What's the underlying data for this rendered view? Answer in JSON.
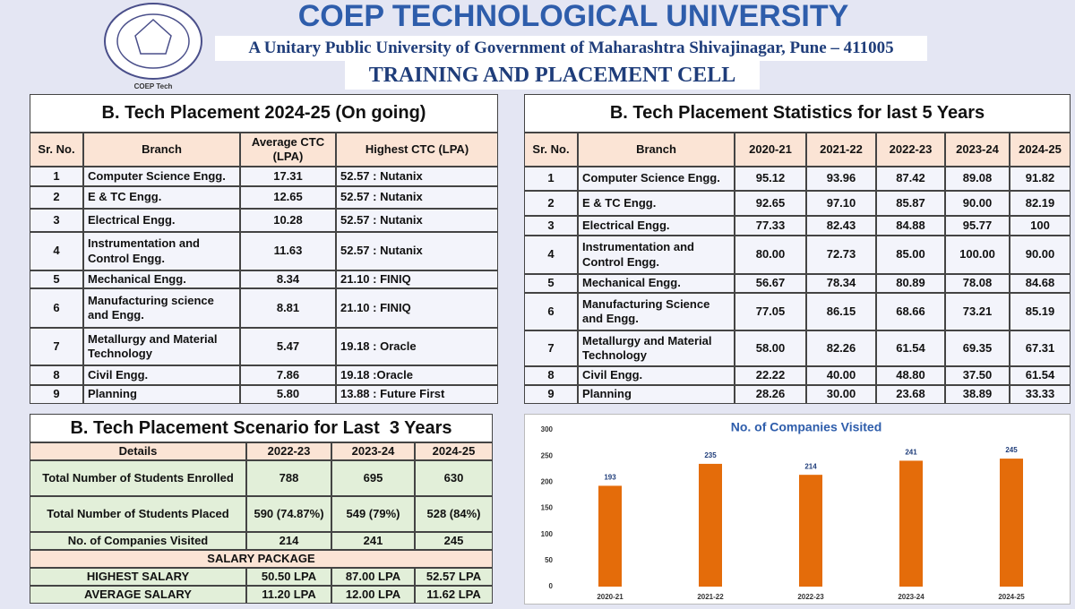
{
  "header": {
    "title": "COEP TECHNOLOGICAL UNIVERSITY",
    "subtitle": "A Unitary Public University of Government of Maharashtra Shivajinagar, Pune – 411005",
    "cell": "TRAINING AND PLACEMENT CELL",
    "logo_caption": "COEP Tech"
  },
  "placement_2024_25": {
    "title": "B. Tech Placement 2024-25 (On going)",
    "columns": [
      "Sr. No.",
      "Branch",
      "Average CTC (LPA)",
      "Highest CTC (LPA)"
    ],
    "rows": [
      [
        "1",
        "Computer Science Engg.",
        "17.31",
        "52.57 : Nutanix"
      ],
      [
        "2",
        "E & TC Engg.",
        "12.65",
        "52.57 : Nutanix"
      ],
      [
        "3",
        "Electrical Engg.",
        "10.28",
        "52.57 : Nutanix"
      ],
      [
        "4",
        "Instrumentation and Control Engg.",
        "11.63",
        "52.57 : Nutanix"
      ],
      [
        "5",
        "Mechanical Engg.",
        "8.34",
        "21.10 : FINIQ"
      ],
      [
        "6",
        "Manufacturing science and Engg.",
        "8.81",
        "21.10 : FINIQ"
      ],
      [
        "7",
        "Metallurgy and Material Technology",
        "5.47",
        "19.18 : Oracle"
      ],
      [
        "8",
        "Civil Engg.",
        "7.86",
        "19.18 :Oracle"
      ],
      [
        "9",
        "Planning",
        "5.80",
        "13.88 : Future First"
      ]
    ]
  },
  "statistics_5_years": {
    "title": "B. Tech Placement Statistics for last 5 Years",
    "columns": [
      "Sr. No.",
      "Branch",
      "2020-21",
      "2021-22",
      "2022-23",
      "2023-24",
      "2024-25"
    ],
    "rows": [
      [
        "1",
        "Computer Science Engg.",
        "95.12",
        "93.96",
        "87.42",
        "89.08",
        "91.82"
      ],
      [
        "2",
        "E & TC Engg.",
        "92.65",
        "97.10",
        "85.87",
        "90.00",
        "82.19"
      ],
      [
        "3",
        "Electrical Engg.",
        "77.33",
        "82.43",
        "84.88",
        "95.77",
        "100"
      ],
      [
        "4",
        "Instrumentation and Control Engg.",
        "80.00",
        "72.73",
        "85.00",
        "100.00",
        "90.00"
      ],
      [
        "5",
        "Mechanical Engg.",
        "56.67",
        "78.34",
        "80.89",
        "78.08",
        "84.68"
      ],
      [
        "6",
        "Manufacturing Science and Engg.",
        "77.05",
        "86.15",
        "68.66",
        "73.21",
        "85.19"
      ],
      [
        "7",
        "Metallurgy and Material Technology",
        "58.00",
        "82.26",
        "61.54",
        "69.35",
        "67.31"
      ],
      [
        "8",
        "Civil Engg.",
        "22.22",
        "40.00",
        "48.80",
        "37.50",
        "61.54"
      ],
      [
        "9",
        "Planning",
        "28.26",
        "30.00",
        "23.68",
        "38.89",
        "33.33"
      ]
    ]
  },
  "scenario_3_years": {
    "title": "B. Tech Placement Scenario for Last  3 Years",
    "columns": [
      "Details",
      "2022-23",
      "2023-24",
      "2024-25"
    ],
    "rows": [
      [
        "Total Number of Students Enrolled",
        "788",
        "695",
        "630"
      ],
      [
        "Total Number of Students Placed",
        "590 (74.87%)",
        "549 (79%)",
        "528 (84%)"
      ],
      [
        "No. of Companies Visited",
        "214",
        "241",
        "245"
      ]
    ],
    "section": "SALARY PACKAGE",
    "salary_rows": [
      [
        "HIGHEST SALARY",
        "50.50 LPA",
        "87.00 LPA",
        "52.57 LPA"
      ],
      [
        "AVERAGE SALARY",
        "11.20 LPA",
        "12.00 LPA",
        "11.62 LPA"
      ]
    ]
  },
  "chart_data": {
    "type": "bar",
    "title": "No. of Companies Visited",
    "categories": [
      "2020-21",
      "2021-22",
      "2022-23",
      "2023-24",
      "2024-25"
    ],
    "values": [
      193,
      235,
      214,
      241,
      245
    ],
    "color": "#e46c0a",
    "ylim": [
      0,
      300
    ],
    "yticks": [
      0,
      50,
      100,
      150,
      200,
      250,
      300
    ],
    "grid": false
  }
}
